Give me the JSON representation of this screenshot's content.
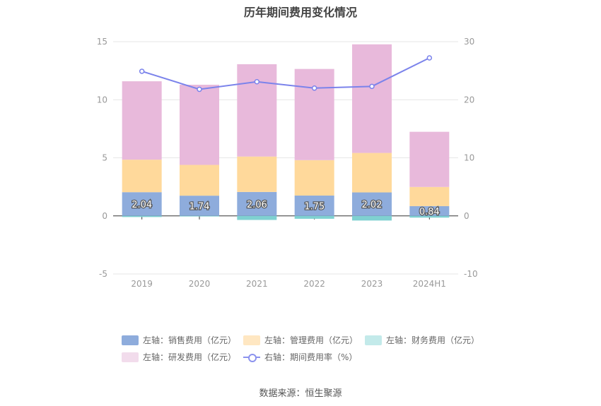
{
  "chart_data": {
    "type": "bar",
    "title": "历年期间费用变化情况",
    "categories": [
      "2019",
      "2020",
      "2021",
      "2022",
      "2023",
      "2024H1"
    ],
    "series": [
      {
        "name": "左轴：销售费用（亿元）",
        "axis": "left",
        "color": "#8eacdc",
        "values": [
          2.04,
          1.74,
          2.06,
          1.75,
          2.02,
          0.84
        ],
        "labels": [
          "2.04",
          "1.74",
          "2.06",
          "1.75",
          "2.02",
          "0.84"
        ]
      },
      {
        "name": "左轴：管理费用（亿元）",
        "axis": "left",
        "color": "#ffd99b",
        "values": [
          2.8,
          2.65,
          3.05,
          3.05,
          3.4,
          1.65
        ]
      },
      {
        "name": "左轴：财务费用（亿元）",
        "axis": "left",
        "color": "#7fd1d1",
        "values": [
          -0.1,
          -0.05,
          -0.35,
          -0.25,
          -0.4,
          -0.15
        ]
      },
      {
        "name": "左轴：研发费用（亿元）",
        "axis": "left",
        "color": "#e8b9db",
        "values": [
          6.75,
          6.9,
          7.95,
          7.85,
          9.35,
          4.75
        ]
      },
      {
        "name": "右轴：期间费用率（%）",
        "axis": "right",
        "type": "line",
        "color": "#7b83eb",
        "values": [
          24.9,
          21.8,
          23.1,
          22.0,
          22.3,
          27.2
        ]
      }
    ],
    "y_left": {
      "min": -5,
      "max": 15,
      "ticks": [
        "15",
        "10",
        "5",
        "0",
        "-5"
      ]
    },
    "y_right": {
      "min": -10,
      "max": 30,
      "ticks": [
        "30",
        "20",
        "10",
        "0",
        "-10"
      ]
    },
    "grid": true,
    "legend_position": "bottom"
  },
  "legend": [
    {
      "label": "左轴：销售费用（亿元）",
      "color": "#8eacdc",
      "kind": "bar"
    },
    {
      "label": "左轴：管理费用（亿元）",
      "color": "#ffe7c2",
      "kind": "bar"
    },
    {
      "label": "左轴：财务费用（亿元）",
      "color": "#c3eaea",
      "kind": "bar"
    },
    {
      "label": "左轴：研发费用（亿元）",
      "color": "#f2dcec",
      "kind": "bar"
    },
    {
      "label": "右轴：期间费用率（%）",
      "color": "#8b92ee",
      "kind": "line"
    }
  ],
  "source": "数据来源：恒生聚源"
}
